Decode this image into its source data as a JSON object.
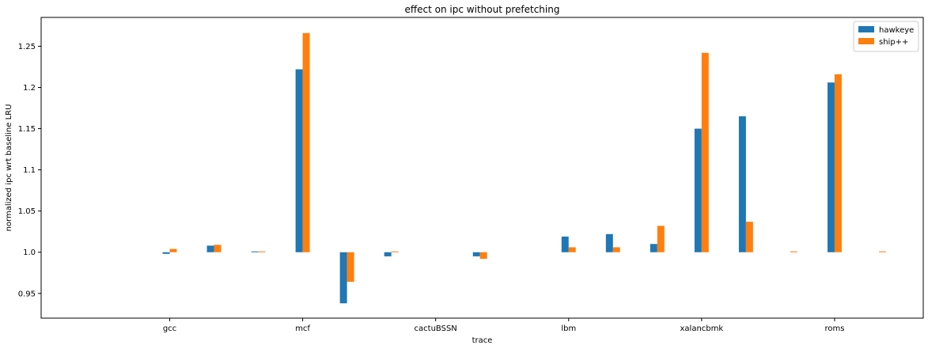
{
  "chart_data": {
    "type": "bar",
    "title": "effect on ipc without prefetching",
    "xlabel": "trace",
    "ylabel": "normalized ipc wrt baseline LRU",
    "baseline": 1.0,
    "ylim": [
      0.92,
      1.285
    ],
    "yticks": [
      0.95,
      1.0,
      1.05,
      1.1,
      1.15,
      1.2,
      1.25
    ],
    "ytick_labels": [
      "0.95",
      "1.0",
      "1.05",
      "1.1",
      "1.15",
      "1.2",
      "1.25"
    ],
    "x_tick_labels": [
      "gcc",
      "mcf",
      "cactuBSSN",
      "lbm",
      "xalancbmk",
      "roms"
    ],
    "x_tick_positions": [
      1,
      4,
      7,
      10,
      13,
      16
    ],
    "x": [
      0,
      1,
      2,
      3,
      4,
      5,
      6,
      7,
      8,
      9,
      10,
      11,
      12,
      13,
      14,
      15,
      16,
      17
    ],
    "xlim": [
      -1.9,
      18.0
    ],
    "legend_position": "top-right",
    "grid": false,
    "series": [
      {
        "name": "hawkeye",
        "color": "#1f77b4",
        "values": [
          null,
          0.998,
          1.008,
          1.001,
          1.222,
          0.938,
          0.995,
          null,
          0.995,
          null,
          1.019,
          1.022,
          1.01,
          1.15,
          1.165,
          null,
          1.206,
          null
        ]
      },
      {
        "name": "ship++",
        "color": "#ff7f0e",
        "values": [
          null,
          1.004,
          1.009,
          1.001,
          1.266,
          0.964,
          1.001,
          null,
          0.992,
          null,
          1.006,
          1.006,
          1.032,
          1.242,
          1.037,
          1.001,
          1.216,
          1.001
        ]
      }
    ]
  }
}
